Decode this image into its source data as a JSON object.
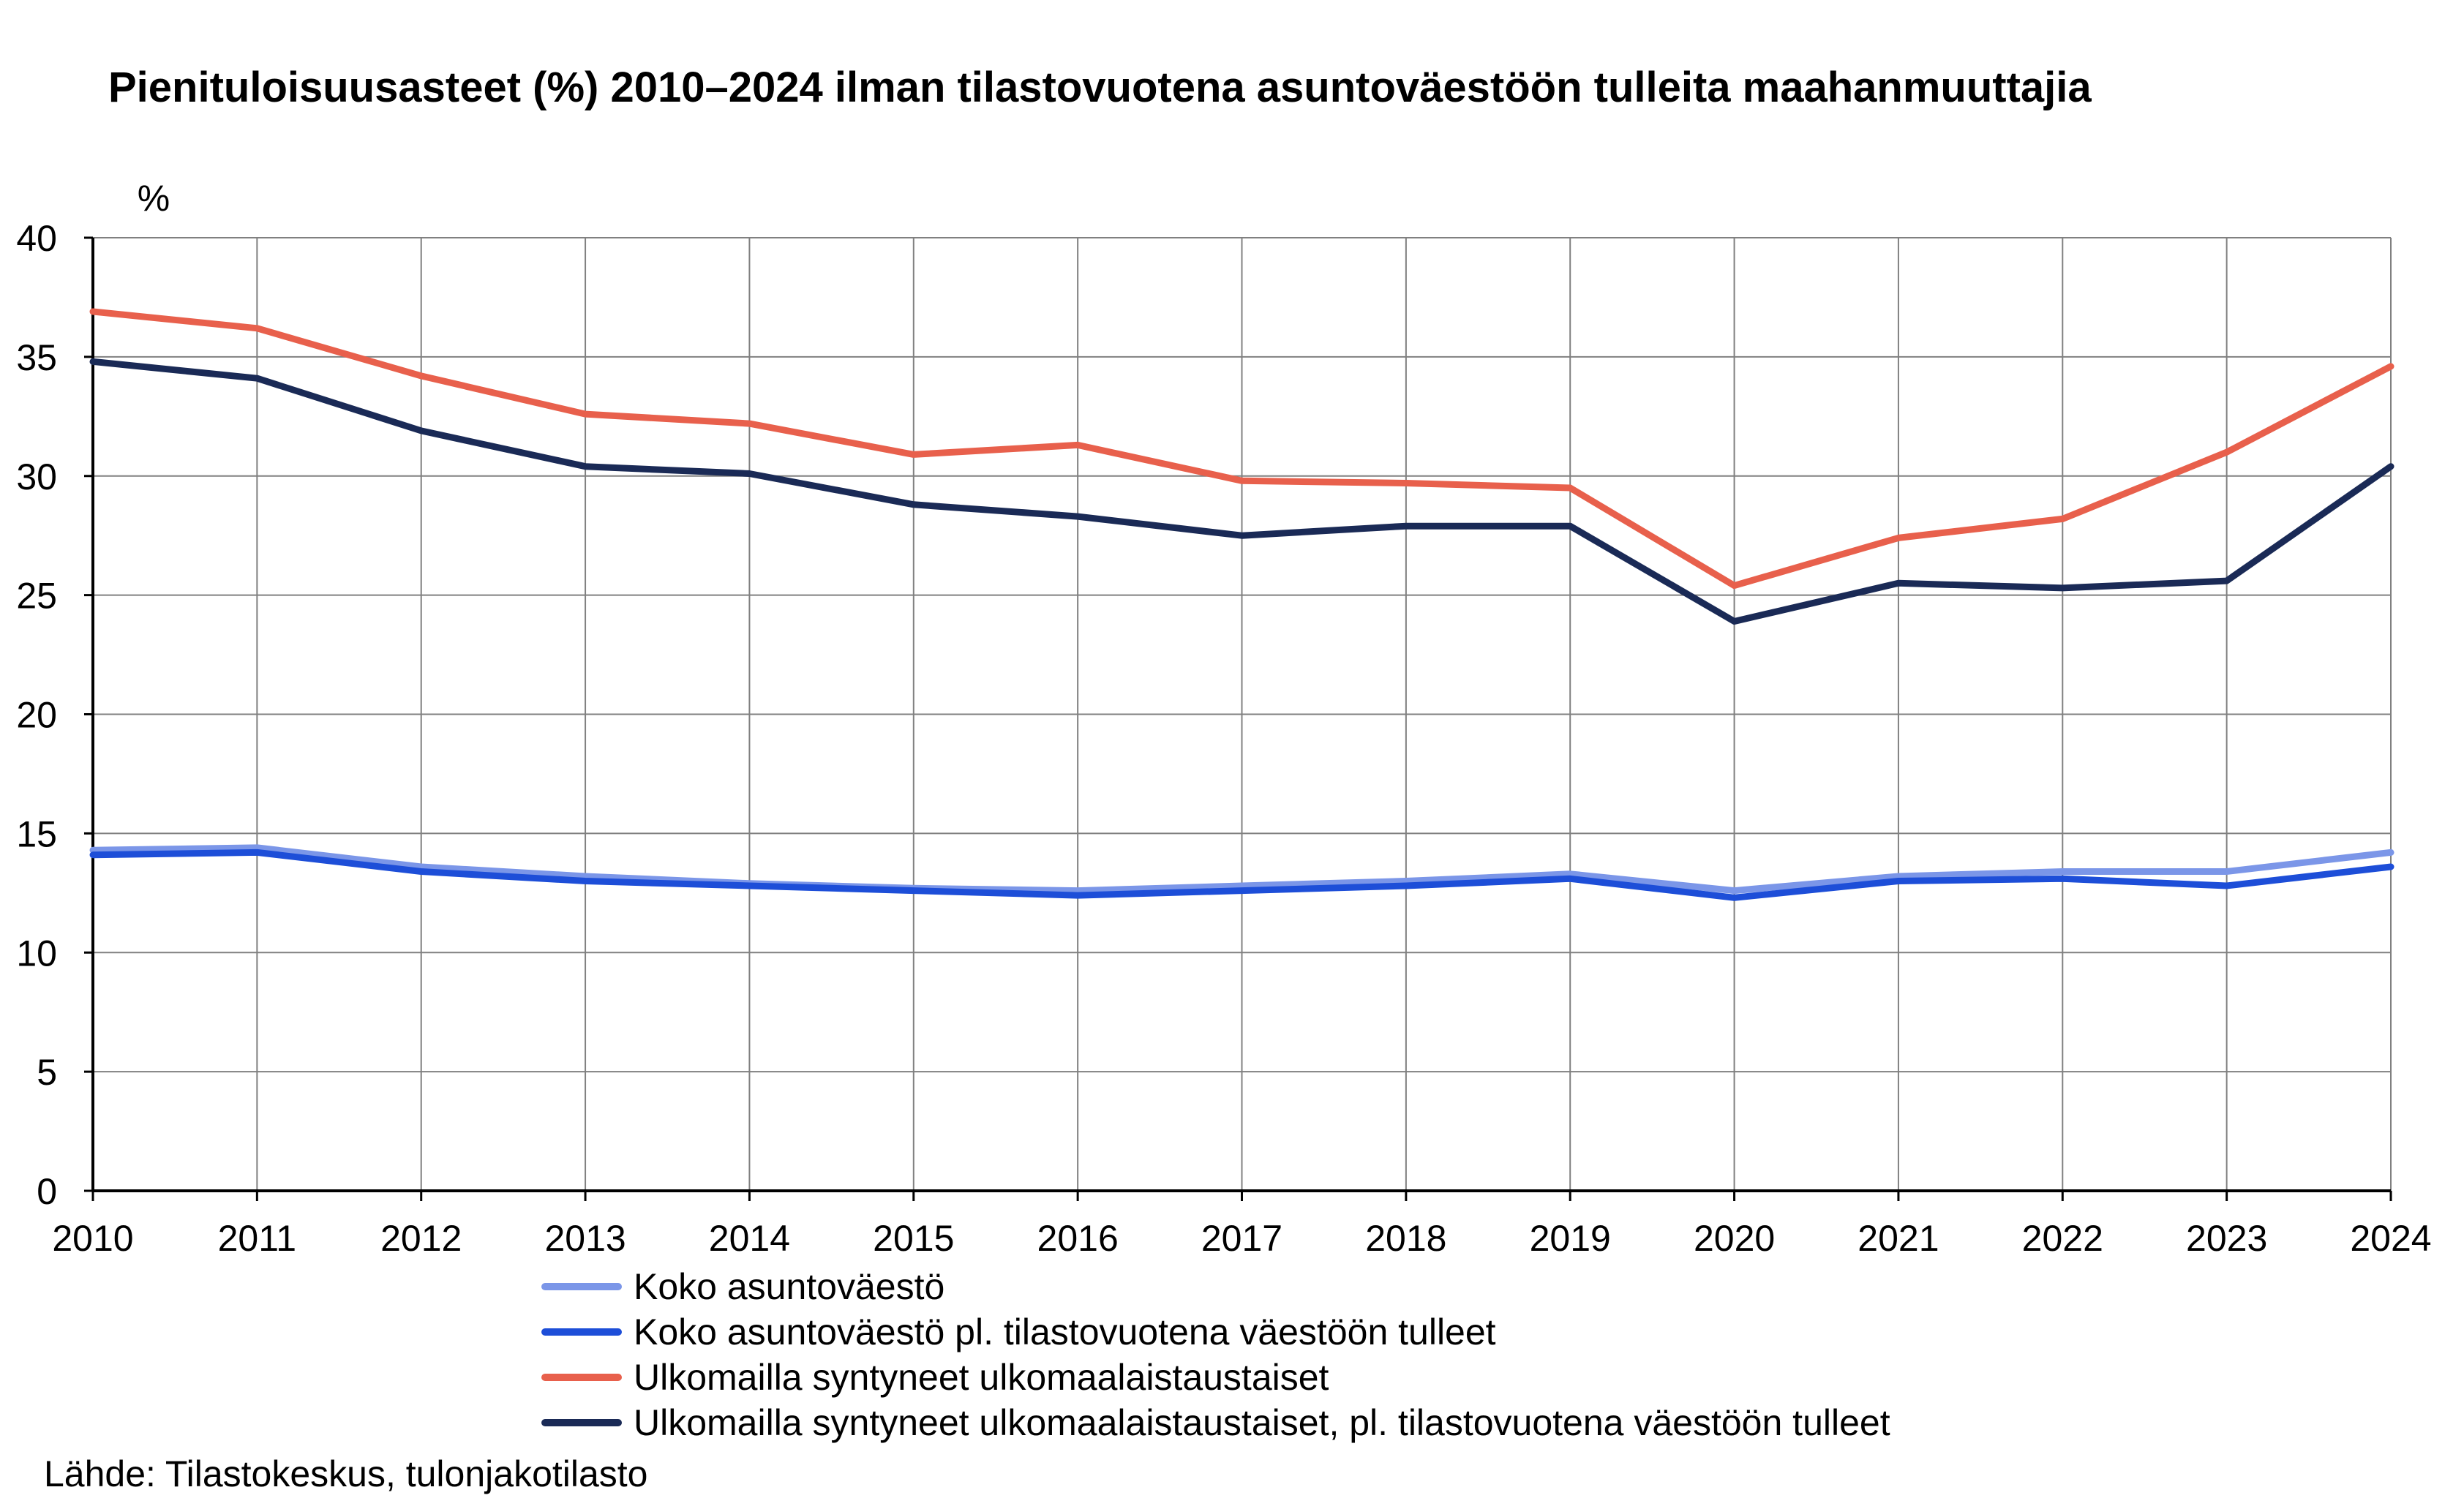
{
  "chart_data": {
    "type": "line",
    "title": "Pienituloisuusasteet (%) 2010–2024 ilman tilastovuotena asuntoväestöön tulleita maahanmuuttajia",
    "ylabel": "%",
    "xlabel": "",
    "ylim": [
      0,
      40
    ],
    "yticks": [
      0,
      5,
      10,
      15,
      20,
      25,
      30,
      35,
      40
    ],
    "grid": true,
    "legend_position": "bottom",
    "categories": [
      "2010",
      "2011",
      "2012",
      "2013",
      "2014",
      "2015",
      "2016",
      "2017",
      "2018",
      "2019",
      "2020",
      "2021",
      "2022",
      "2023",
      "2024"
    ],
    "series": [
      {
        "name": "Koko asuntoväestö",
        "color": "#7b96e8",
        "values": [
          14.3,
          14.4,
          13.6,
          13.2,
          12.9,
          12.7,
          12.6,
          12.8,
          13.0,
          13.3,
          12.6,
          13.2,
          13.4,
          13.4,
          14.2
        ]
      },
      {
        "name": "Koko asuntoväestö pl. tilastovuotena väestöön tulleet",
        "color": "#1d4ed8",
        "values": [
          14.1,
          14.2,
          13.4,
          13.0,
          12.8,
          12.6,
          12.4,
          12.6,
          12.8,
          13.1,
          12.3,
          13.0,
          13.1,
          12.8,
          13.6
        ]
      },
      {
        "name": "Ulkomailla syntyneet ulkomaalaistaustaiset",
        "color": "#e8604c",
        "values": [
          36.9,
          36.2,
          34.2,
          32.6,
          32.2,
          30.9,
          31.3,
          29.8,
          29.7,
          29.5,
          25.4,
          27.4,
          28.2,
          31.0,
          34.6
        ]
      },
      {
        "name": "Ulkomailla syntyneet ulkomaalaistaustaiset, pl. tilastovuotena väestöön tulleet",
        "color": "#1a2a56",
        "values": [
          34.8,
          34.1,
          31.9,
          30.4,
          30.1,
          28.8,
          28.3,
          27.5,
          27.9,
          27.9,
          23.9,
          25.5,
          25.3,
          25.6,
          30.4
        ]
      }
    ]
  },
  "source": "Lähde: Tilastokeskus, tulonjakotilasto"
}
